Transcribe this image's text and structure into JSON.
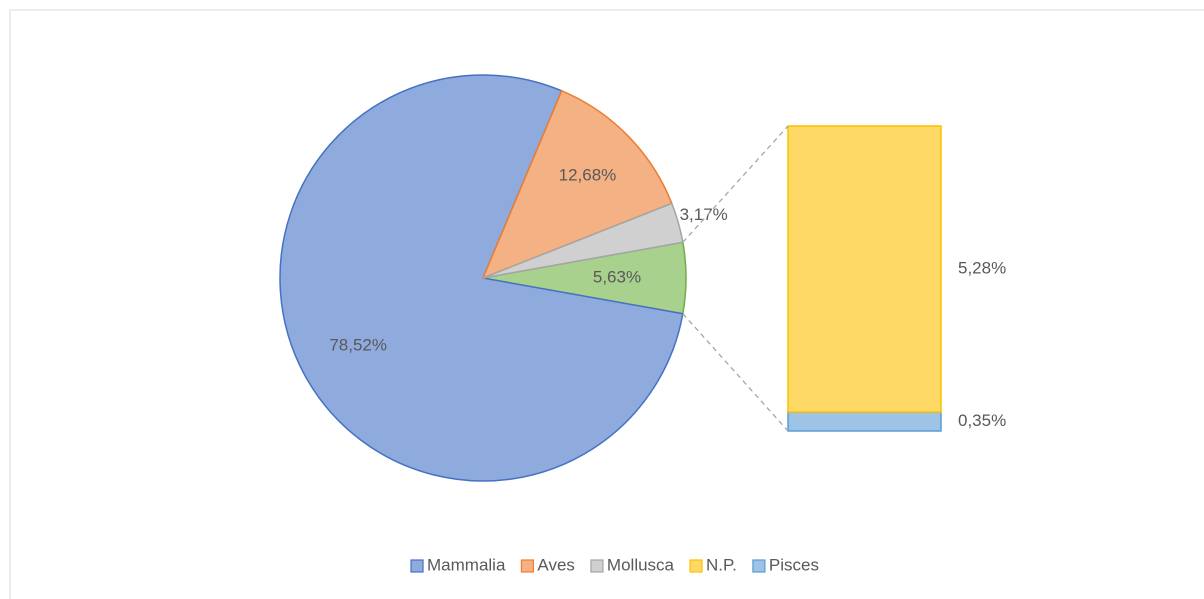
{
  "chart_data": {
    "type": "bar_of_pie",
    "pie": {
      "categories": [
        "Mammalia",
        "Aves",
        "Mollusca"
      ],
      "values": [
        78.52,
        12.68,
        3.17
      ],
      "value_labels": [
        "78,52%",
        "12,68%",
        "3,17%"
      ],
      "colors": [
        "#8faadc",
        "#f4b183",
        "#d0d0d0"
      ],
      "edge_colors": [
        "#4472c4",
        "#ed7d31",
        "#a5a5a5"
      ]
    },
    "other": {
      "value": 5.63,
      "value_label": "5,63%",
      "color": "#a9d18e",
      "edge_color": "#70ad47"
    },
    "bar": {
      "categories": [
        "N.P.",
        "Pisces"
      ],
      "values": [
        5.28,
        0.35
      ],
      "value_labels": [
        "5,28%",
        "0,35%"
      ],
      "colors": [
        "#ffd966",
        "#9dc3e6"
      ],
      "edge_colors": [
        "#ffc000",
        "#5b9bd5"
      ]
    },
    "legend": "bottom"
  }
}
